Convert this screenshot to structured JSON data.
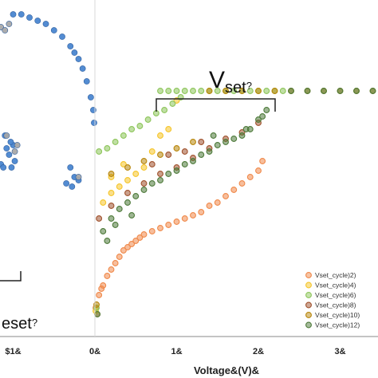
{
  "chart_data": {
    "type": "scatter",
    "xlabel": "Voltage&(V)&",
    "xticks": [
      {
        "value": -1,
        "label": "$1&"
      },
      {
        "value": 0,
        "label": "0&"
      },
      {
        "value": 1,
        "label": "1&"
      },
      {
        "value": 2,
        "label": "2&"
      },
      {
        "value": 3,
        "label": "3&"
      }
    ],
    "xlim": [
      -1.2,
      3.5
    ],
    "ylim": [
      0,
      1
    ],
    "annotations": [
      {
        "id": "vset",
        "label": "V",
        "sub": "set",
        "tail": "?"
      },
      {
        "id": "vreset",
        "label": "eset",
        "tail": "?"
      }
    ],
    "reset_series": [
      {
        "name": "",
        "color": "#4a86d0",
        "x": [
          -1.0,
          -0.9,
          -0.8,
          -0.7,
          -0.6,
          -0.5,
          -0.4,
          -0.3,
          -0.25,
          -0.2,
          -0.15,
          -0.1,
          -0.05,
          -0.02,
          -0.01,
          -1.05,
          -1.0,
          -0.98,
          -1.1,
          -1.08,
          -1.03,
          -1.15,
          -1.12,
          -1.02,
          -0.3,
          -0.25,
          -0.35,
          -0.2,
          -0.28
        ],
        "y": [
          0.98,
          0.98,
          0.97,
          0.96,
          0.95,
          0.93,
          0.91,
          0.88,
          0.86,
          0.84,
          0.81,
          0.77,
          0.72,
          0.68,
          0.64,
          0.54,
          0.57,
          0.52,
          0.6,
          0.56,
          0.58,
          0.51,
          0.5,
          0.5,
          0.5,
          0.47,
          0.45,
          0.46,
          0.44
        ]
      },
      {
        "name": "",
        "color": "#a8a8a8",
        "x": [
          -1.15,
          -1.1,
          -1.05,
          -1.08,
          -0.98,
          -0.95,
          -1.2,
          -0.2
        ],
        "y": [
          0.94,
          0.93,
          0.95,
          0.6,
          0.55,
          0.57,
          0.54,
          0.47
        ]
      }
    ],
    "series": [
      {
        "name": "Vset_cycle)2)",
        "color": "#f0894a",
        "x": [
          0.01,
          0.05,
          0.1,
          0.15,
          0.2,
          0.25,
          0.3,
          0.35,
          0.4,
          0.45,
          0.5,
          0.55,
          0.6,
          0.7,
          0.8,
          0.9,
          1.0,
          1.1,
          1.2,
          1.3,
          1.4,
          1.5,
          1.6,
          1.7,
          1.8,
          1.9,
          2.0,
          2.05,
          0.03,
          0.08
        ],
        "y": [
          0.06,
          0.1,
          0.13,
          0.16,
          0.18,
          0.2,
          0.22,
          0.24,
          0.25,
          0.26,
          0.27,
          0.28,
          0.29,
          0.3,
          0.31,
          0.32,
          0.33,
          0.34,
          0.35,
          0.36,
          0.38,
          0.39,
          0.41,
          0.43,
          0.45,
          0.47,
          0.49,
          0.52,
          0.04,
          0.12
        ]
      },
      {
        "name": "Vset_cycle)4)",
        "color": "#f5c52a",
        "x": [
          0.01,
          0.1,
          0.2,
          0.3,
          0.4,
          0.5,
          0.6,
          0.7,
          0.8,
          0.9,
          1.0,
          0.2,
          0.35
        ],
        "y": [
          0.05,
          0.39,
          0.42,
          0.44,
          0.46,
          0.48,
          0.5,
          0.55,
          0.6,
          0.62,
          0.71,
          0.47,
          0.51
        ]
      },
      {
        "name": "Vset_cycle)6)",
        "color": "#8dc55a",
        "x": [
          0.02,
          0.05,
          0.15,
          0.25,
          0.35,
          0.45,
          0.55,
          0.65,
          0.75,
          0.85,
          0.95,
          1.05,
          0.8,
          0.9,
          1.0,
          1.1,
          1.2,
          1.3,
          1.4,
          1.5,
          1.6,
          1.7,
          1.8,
          1.9,
          2.0,
          2.1,
          2.2,
          2.3
        ],
        "y": [
          0.06,
          0.55,
          0.56,
          0.58,
          0.6,
          0.62,
          0.63,
          0.65,
          0.67,
          0.68,
          0.7,
          0.72,
          0.74,
          0.74,
          0.74,
          0.74,
          0.74,
          0.74,
          0.74,
          0.74,
          0.74,
          0.74,
          0.74,
          0.74,
          0.74,
          0.74,
          0.74,
          0.74
        ]
      },
      {
        "name": "Vset_cycle)8)",
        "color": "#a0522d",
        "x": [
          0.05,
          0.2,
          0.4,
          0.6,
          0.8,
          1.0,
          1.2,
          1.4,
          1.6,
          1.8,
          2.0,
          0.7,
          0.9,
          1.1,
          1.3
        ],
        "y": [
          0.34,
          0.38,
          0.42,
          0.45,
          0.48,
          0.5,
          0.53,
          0.56,
          0.59,
          0.61,
          0.64,
          0.51,
          0.54,
          0.55,
          0.58
        ]
      },
      {
        "name": "Vset_cycle)10)",
        "color": "#b8860b",
        "x": [
          0.02,
          0.2,
          0.4,
          0.6,
          0.8,
          1.0,
          1.2,
          1.4,
          1.6,
          1.8,
          2.0,
          2.2,
          2.4,
          2.6,
          2.8,
          3.0,
          3.2,
          3.4
        ],
        "y": [
          0.07,
          0.48,
          0.5,
          0.52,
          0.54,
          0.56,
          0.58,
          0.74,
          0.74,
          0.74,
          0.74,
          0.74,
          0.74,
          0.74,
          0.74,
          0.74,
          0.74,
          0.74
        ]
      },
      {
        "name": "Vset_cycle)12)",
        "color": "#4e7a3a",
        "x": [
          0.03,
          0.1,
          0.2,
          0.3,
          0.4,
          0.5,
          0.6,
          0.7,
          0.8,
          0.9,
          1.0,
          1.1,
          1.2,
          1.3,
          1.4,
          1.5,
          1.6,
          1.7,
          1.8,
          1.9,
          2.0,
          2.1,
          0.15,
          0.25,
          0.45,
          1.45,
          1.85,
          2.05,
          2.4,
          2.6,
          2.8,
          3.0,
          3.2,
          3.4
        ],
        "y": [
          0.04,
          0.3,
          0.34,
          0.37,
          0.39,
          0.41,
          0.43,
          0.45,
          0.46,
          0.48,
          0.49,
          0.51,
          0.52,
          0.54,
          0.55,
          0.57,
          0.58,
          0.59,
          0.6,
          0.62,
          0.65,
          0.68,
          0.27,
          0.32,
          0.35,
          0.6,
          0.62,
          0.66,
          0.74,
          0.74,
          0.74,
          0.74,
          0.74,
          0.74
        ]
      }
    ]
  }
}
